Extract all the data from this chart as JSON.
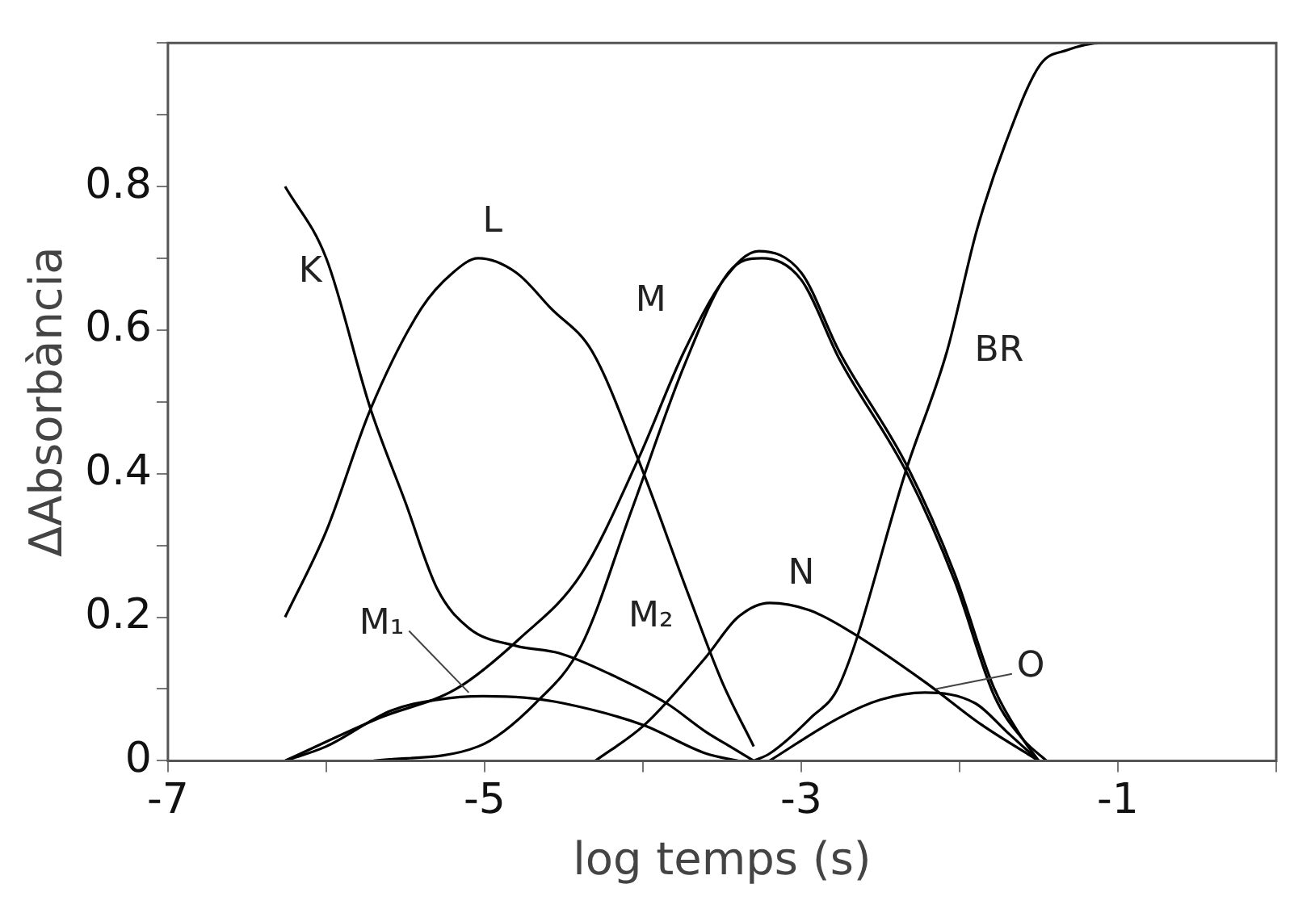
{
  "chart_data": {
    "type": "line",
    "xlabel": "log temps (s)",
    "ylabel": "ΔAbsorbància",
    "xlim": [
      -7,
      0
    ],
    "ylim": [
      0,
      1
    ],
    "xticks": [
      -7,
      {
        "value": -6,
        "label": null
      },
      -5,
      {
        "value": -4,
        "label": null
      },
      -3,
      {
        "value": -2,
        "label": null
      },
      -1,
      {
        "value": 0,
        "label": null
      }
    ],
    "yticks": [
      0,
      {
        "value": 0.1,
        "label": null
      },
      0.2,
      {
        "value": 0.3,
        "label": null
      },
      0.4,
      {
        "value": 0.5,
        "label": null
      },
      0.6,
      {
        "value": 0.7,
        "label": null
      },
      0.8,
      {
        "value": 0.9,
        "label": null
      },
      {
        "value": 1,
        "label": null
      }
    ],
    "grid": false,
    "legend": false,
    "marker": "none",
    "line_style": "solid",
    "series": [
      {
        "name": "K",
        "color": "#000000",
        "x": [
          -6.26,
          -6.0,
          -5.72,
          -5.5,
          -5.3,
          -5.1,
          -4.8,
          -4.53,
          -4.2,
          -3.85,
          -3.6,
          -3.45,
          -3.3
        ],
        "values": [
          0.8,
          0.7,
          0.49,
          0.36,
          0.24,
          0.185,
          0.16,
          0.15,
          0.12,
          0.08,
          0.04,
          0.02,
          0
        ]
      },
      {
        "name": "L",
        "color": "#000000",
        "x": [
          -6.26,
          -6.0,
          -5.72,
          -5.4,
          -5.2,
          -5.04,
          -4.8,
          -4.58,
          -4.32,
          -4.03,
          -3.71,
          -3.5,
          -3.3
        ],
        "values": [
          0.2,
          0.32,
          0.49,
          0.63,
          0.68,
          0.7,
          0.68,
          0.63,
          0.57,
          0.42,
          0.23,
          0.11,
          0.02
        ]
      },
      {
        "name": "M₁",
        "color": "#000000",
        "x": [
          -6.26,
          -6.0,
          -5.59,
          -5.3,
          -5.01,
          -4.75,
          -4.5,
          -4.0,
          -3.6,
          -3.4
        ],
        "values": [
          0,
          0.02,
          0.07,
          0.085,
          0.09,
          0.088,
          0.08,
          0.05,
          0.01,
          0
        ]
      },
      {
        "name": "M₂",
        "color": "#000000",
        "x": [
          -5.7,
          -5.04,
          -4.68,
          -4.39,
          -4.07,
          -3.74,
          -3.46,
          -3.25,
          -3.0,
          -2.76,
          -2.33,
          -2.03,
          -1.78,
          -1.6,
          -1.45
        ],
        "values": [
          0,
          0.02,
          0.08,
          0.16,
          0.35,
          0.55,
          0.68,
          0.7,
          0.67,
          0.56,
          0.4,
          0.25,
          0.09,
          0.03,
          0
        ]
      },
      {
        "name": "M",
        "color": "#000000",
        "x": [
          -6.26,
          -5.66,
          -5.18,
          -4.78,
          -4.39,
          -4.03,
          -3.74,
          -3.49,
          -3.27,
          -3.0,
          -2.76,
          -2.33,
          -2.03,
          -1.78,
          -1.6,
          -1.5
        ],
        "values": [
          0,
          0.06,
          0.1,
          0.17,
          0.26,
          0.42,
          0.57,
          0.67,
          0.71,
          0.68,
          0.57,
          0.41,
          0.26,
          0.1,
          0.03,
          0
        ]
      },
      {
        "name": "N",
        "color": "#000000",
        "x": [
          -4.3,
          -3.99,
          -3.6,
          -3.4,
          -3.2,
          -2.95,
          -2.69,
          -2.22,
          -1.86,
          -1.5
        ],
        "values": [
          0,
          0.05,
          0.145,
          0.2,
          0.22,
          0.21,
          0.18,
          0.11,
          0.05,
          0
        ]
      },
      {
        "name": "O",
        "color": "#000000",
        "x": [
          -3.2,
          -2.76,
          -2.5,
          -2.22,
          -1.9,
          -1.7,
          -1.5
        ],
        "values": [
          0,
          0.06,
          0.085,
          0.095,
          0.08,
          0.04,
          0
        ]
      },
      {
        "name": "BR",
        "color": "#000000",
        "x": [
          -3.3,
          -3.2,
          -2.94,
          -2.76,
          -2.33,
          -2.08,
          -1.89,
          -1.71,
          -1.49,
          -1.32,
          -1.1,
          0
        ],
        "values": [
          0,
          0.01,
          0.06,
          0.105,
          0.41,
          0.57,
          0.74,
          0.86,
          0.97,
          0.99,
          1,
          1
        ]
      }
    ]
  }
}
